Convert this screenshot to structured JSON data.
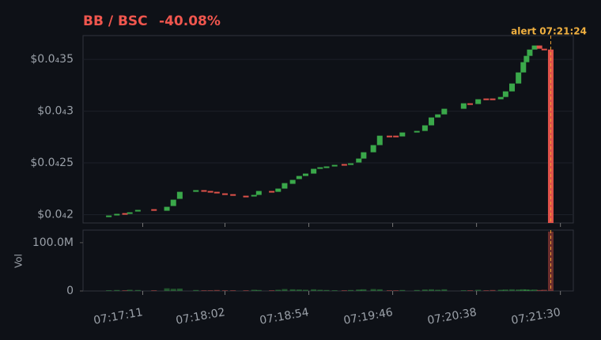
{
  "chart_data": {
    "type": "candlestick",
    "title": "BB / BSC",
    "change": "-40.08%",
    "volume_axis_label": "Vol",
    "alert": {
      "text": "alert 07:21:24",
      "x": "07:21:24"
    },
    "up_color": "#3aa84a",
    "down_color": "#e0524a",
    "alert_color": "#f0a030",
    "x": [
      "07:16:50",
      "07:16:55",
      "07:17:00",
      "07:17:03",
      "07:17:08",
      "07:17:18",
      "07:17:26",
      "07:17:30",
      "07:17:34",
      "07:17:44",
      "07:17:49",
      "07:17:53",
      "07:17:57",
      "07:18:02",
      "07:18:07",
      "07:18:15",
      "07:18:20",
      "07:18:23",
      "07:18:31",
      "07:18:35",
      "07:18:39",
      "07:18:44",
      "07:18:48",
      "07:18:52",
      "07:18:57",
      "07:19:01",
      "07:19:05",
      "07:19:10",
      "07:19:16",
      "07:19:20",
      "07:19:25",
      "07:19:28",
      "07:19:34",
      "07:19:38",
      "07:19:44",
      "07:19:48",
      "07:19:52",
      "07:20:01",
      "07:20:06",
      "07:20:10",
      "07:20:14",
      "07:20:18",
      "07:20:30",
      "07:20:34",
      "07:20:39",
      "07:20:44",
      "07:20:48",
      "07:20:53",
      "07:20:56",
      "07:21:00",
      "07:21:04",
      "07:21:07",
      "07:21:09",
      "07:21:11",
      "07:21:14",
      "07:21:17",
      "07:21:20",
      "07:21:24"
    ],
    "open": [
      1.985e-05,
      2e-05,
      2.015e-05,
      2.008e-05,
      2.031e-05,
      2.053e-05,
      2.038e-05,
      2.084e-05,
      2.153e-05,
      2.221e-05,
      2.237e-05,
      2.229e-05,
      2.221e-05,
      2.206e-05,
      2.198e-05,
      2.183e-05,
      2.176e-05,
      2.191e-05,
      2.229e-05,
      2.221e-05,
      2.252e-05,
      2.298e-05,
      2.344e-05,
      2.374e-05,
      2.397e-05,
      2.443e-05,
      2.458e-05,
      2.466e-05,
      2.489e-05,
      2.489e-05,
      2.504e-05,
      2.542e-05,
      2.603e-05,
      2.672e-05,
      2.763e-05,
      2.763e-05,
      2.756e-05,
      2.802e-05,
      2.809e-05,
      2.863e-05,
      2.939e-05,
      2.969e-05,
      3.023e-05,
      3.076e-05,
      3.069e-05,
      3.122e-05,
      3.122e-05,
      3.115e-05,
      3.137e-05,
      3.191e-05,
      3.267e-05,
      3.374e-05,
      3.473e-05,
      3.534e-05,
      3.595e-05,
      3.634e-05,
      3.603e-05,
      3.595e-05
    ],
    "close": [
      1.992e-05,
      2.008e-05,
      2.008e-05,
      2.023e-05,
      2.046e-05,
      2.046e-05,
      2.076e-05,
      2.145e-05,
      2.221e-05,
      2.237e-05,
      2.229e-05,
      2.221e-05,
      2.206e-05,
      2.198e-05,
      2.191e-05,
      2.176e-05,
      2.191e-05,
      2.229e-05,
      2.221e-05,
      2.252e-05,
      2.305e-05,
      2.336e-05,
      2.374e-05,
      2.397e-05,
      2.443e-05,
      2.458e-05,
      2.466e-05,
      2.481e-05,
      2.481e-05,
      2.496e-05,
      2.542e-05,
      2.603e-05,
      2.672e-05,
      2.763e-05,
      2.756e-05,
      2.756e-05,
      2.794e-05,
      2.809e-05,
      2.863e-05,
      2.939e-05,
      2.969e-05,
      3.023e-05,
      3.076e-05,
      3.069e-05,
      3.115e-05,
      3.115e-05,
      3.115e-05,
      3.137e-05,
      3.191e-05,
      3.267e-05,
      3.374e-05,
      3.473e-05,
      3.534e-05,
      3.595e-05,
      3.634e-05,
      3.603e-05,
      3.595e-05,
      1.92e-05
    ],
    "volume": [
      1500000,
      2000000,
      1500000,
      2500000,
      2000000,
      1500000,
      5500000,
      4500000,
      5000000,
      2000000,
      1500000,
      1500000,
      2000000,
      1500000,
      1500000,
      1500000,
      2500000,
      2000000,
      1500000,
      2500000,
      4000000,
      3500000,
      3000000,
      2500000,
      3500000,
      2500000,
      2000000,
      1500000,
      1500000,
      2000000,
      3000000,
      3500000,
      4000000,
      3500000,
      1500000,
      1500000,
      2000000,
      2000000,
      3000000,
      3500000,
      2500000,
      3500000,
      1500000,
      1500000,
      2500000,
      1500000,
      2000000,
      2500000,
      3000000,
      3500000,
      3000000,
      3500000,
      3000000,
      2500000,
      3000000,
      2000000,
      2500000,
      123000000
    ],
    "xlim": [
      "07:16:34",
      "07:21:38"
    ],
    "xticks": [
      "07:17:11",
      "07:18:02",
      "07:18:54",
      "07:19:46",
      "07:20:38",
      "07:21:30"
    ],
    "ylim": [
      1.92e-05,
      3.73e-05
    ],
    "yticks": [
      {
        "value": 2e-05,
        "label": "$0.0₄2"
      },
      {
        "value": 2.5e-05,
        "label": "$0.0₄25"
      },
      {
        "value": 3e-05,
        "label": "$0.0₄3"
      },
      {
        "value": 3.5e-05,
        "label": "$0.0₄35"
      }
    ],
    "y2lim": [
      0,
      126000000
    ],
    "y2ticks": [
      0,
      {
        "value": 100000000,
        "label": "100.0M"
      }
    ],
    "grid": true
  }
}
